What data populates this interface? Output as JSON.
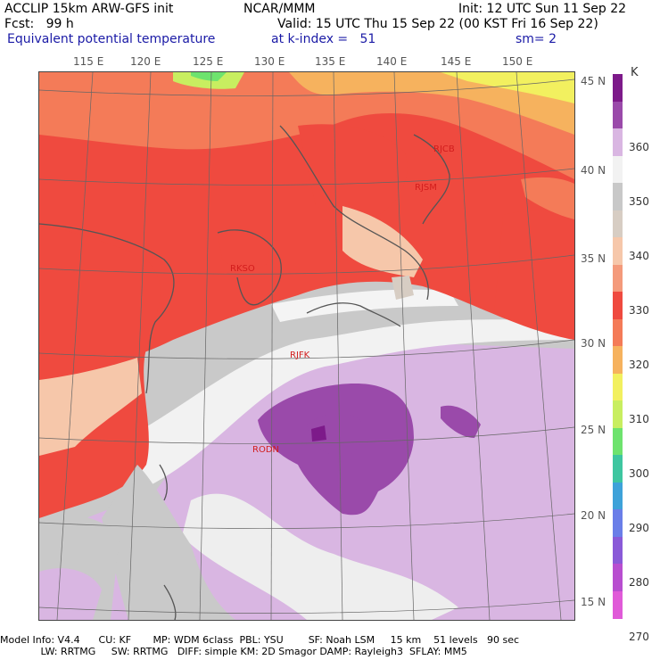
{
  "header": {
    "line1_left": "ACCLIP 15km ARW-GFS init",
    "line1_mid": "NCAR/MMM",
    "line1_right": "Init: 12 UTC Sun 11 Sep 22",
    "line2_left": "Fcst:   99 h",
    "line2_right": "Valid: 15 UTC Thu 15 Sep 22 (00 KST Fri 16 Sep 22)",
    "line3_left": "Equivalent potential temperature",
    "line3_mid": "at k-index =   51",
    "line3_right": "sm= 2"
  },
  "lon_labels": [
    "115 E",
    "120 E",
    "125 E",
    "130 E",
    "135 E",
    "140 E",
    "145 E",
    "150 E"
  ],
  "lat_labels": [
    "45 N",
    "40 N",
    "35 N",
    "30 N",
    "25 N",
    "20 N",
    "15 N"
  ],
  "stations": [
    "RJCB",
    "RJSM",
    "RKSO",
    "RJFK",
    "RODN"
  ],
  "colorbar": {
    "unit": "K",
    "levels": [
      "360",
      "350",
      "340",
      "330",
      "320",
      "310",
      "300",
      "290",
      "280",
      "270"
    ],
    "colors": [
      "#7d1a8a",
      "#9a4aaa",
      "#d9b6e2",
      "#f2f2f2",
      "#c8c8c8",
      "#d7cdc3",
      "#f6c7aa",
      "#f49a7b",
      "#ef4a3f",
      "#f47b58",
      "#f6b25e",
      "#f2f05f",
      "#c8ee60",
      "#6ee36e",
      "#3ec6a0",
      "#3ea2d9",
      "#6a7ee8",
      "#8a5ad8",
      "#b84ed0",
      "#e05ad8"
    ]
  },
  "footer": {
    "line1": "Model Info: V4.4      CU: KF       MP: WDM 6class  PBL: YSU        SF: Noah LSM     15 km    51 levels   90 sec",
    "line2": "             LW: RRTMG     SW: RRTMG   DIFF: simple KM: 2D Smagor DAMP: Rayleigh3  SFLAY: MM5"
  }
}
